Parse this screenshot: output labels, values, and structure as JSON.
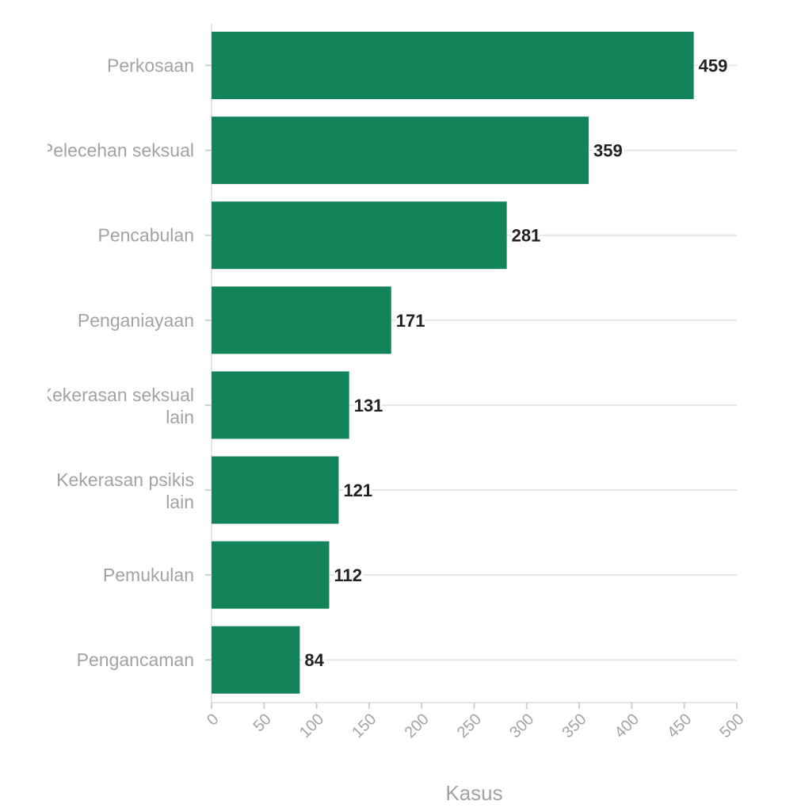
{
  "chart_data": {
    "type": "bar",
    "orientation": "horizontal",
    "categories": [
      "Perkosaan",
      "Pelecehan seksual",
      "Pencabulan",
      "Penganiayaan",
      "Kekerasan seksual lain",
      "Kekerasan psikis lain",
      "Pemukulan",
      "Pengancaman"
    ],
    "values": [
      459,
      359,
      281,
      171,
      131,
      121,
      112,
      84
    ],
    "xlabel": "Kasus",
    "ylabel": "",
    "xlim": [
      0,
      500
    ],
    "xticks": [
      0,
      50,
      100,
      150,
      200,
      250,
      300,
      350,
      400,
      450,
      500
    ],
    "grid": "horizontal",
    "legend": "none",
    "bar_color": "#13845a",
    "grid_color": "#e6e6e6",
    "value_labels": true
  }
}
